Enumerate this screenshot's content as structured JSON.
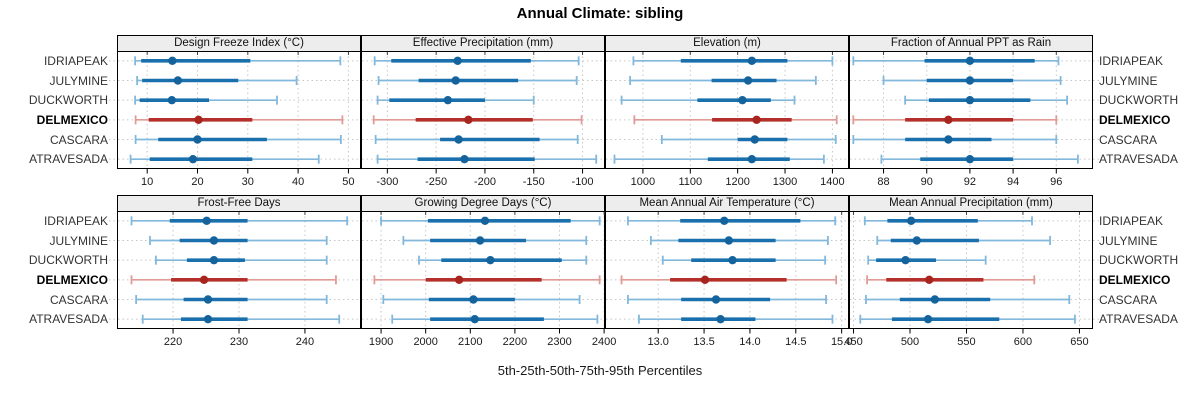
{
  "title": "Annual Climate: sibling",
  "footer_label": "5th-25th-50th-75th-95th Percentiles",
  "sites": [
    "IDRIAPEAK",
    "JULYMINE",
    "DUCKWORTH",
    "DELMEXICO",
    "CASCARA",
    "ATRAVESADA"
  ],
  "highlight_site": "DELMEXICO",
  "legend_note": "percentile whisker plot: thin line 5th-95th, thick line 25th-75th, dot 50th",
  "colors": {
    "blue": "#1a6fad",
    "blue_light": "#82b8dc",
    "blue_dot": "#15639c",
    "red": "#b5302a",
    "red_light": "#e29a94",
    "red_dot": "#a8241f",
    "grid": "#c6c6c6",
    "strip_bg": "#ededed",
    "border": "#000000",
    "text": "#1a1a1a"
  },
  "chart_data": [
    {
      "type": "percentile-dotplot",
      "title": "Design Freeze Index (°C)",
      "xlim": [
        4,
        52.5
      ],
      "ticks": [
        10,
        20,
        30,
        40,
        50
      ],
      "tick_labels": [
        "10",
        "20",
        "30",
        "40",
        "50"
      ],
      "rows": [
        {
          "site": "IDRIAPEAK",
          "p": [
            7.6,
            8.8,
            15.0,
            30.5,
            48.4
          ]
        },
        {
          "site": "JULYMINE",
          "p": [
            8.0,
            9.0,
            16.1,
            28.1,
            39.7
          ]
        },
        {
          "site": "DUCKWORTH",
          "p": [
            7.6,
            8.5,
            14.9,
            22.3,
            35.8
          ]
        },
        {
          "site": "DELMEXICO",
          "p": [
            7.7,
            10.3,
            20.2,
            30.9,
            48.8
          ]
        },
        {
          "site": "CASCARA",
          "p": [
            7.7,
            12.2,
            20.0,
            33.8,
            48.5
          ]
        },
        {
          "site": "ATRAVESADA",
          "p": [
            6.7,
            10.5,
            19.1,
            30.9,
            44.1
          ]
        }
      ]
    },
    {
      "type": "percentile-dotplot",
      "title": "Effective Precipitation (mm)",
      "xlim": [
        -327,
        -77
      ],
      "ticks": [
        -300,
        -250,
        -200,
        -150,
        -100
      ],
      "tick_labels": [
        "-300",
        "-250",
        "-200",
        "-150",
        "-100"
      ],
      "rows": [
        {
          "site": "IDRIAPEAK",
          "p": [
            -313,
            -296,
            -228,
            -153,
            -104
          ]
        },
        {
          "site": "JULYMINE",
          "p": [
            -309,
            -268,
            -230,
            -166,
            -106
          ]
        },
        {
          "site": "DUCKWORTH",
          "p": [
            -310,
            -298,
            -238,
            -200,
            -150
          ]
        },
        {
          "site": "DELMEXICO",
          "p": [
            -314,
            -271,
            -217,
            -151,
            -101
          ]
        },
        {
          "site": "CASCARA",
          "p": [
            -312,
            -246,
            -227,
            -144,
            -105
          ]
        },
        {
          "site": "ATRAVESADA",
          "p": [
            -310,
            -269,
            -221,
            -149,
            -86
          ]
        }
      ]
    },
    {
      "type": "percentile-dotplot",
      "title": "Elevation (m)",
      "xlim": [
        920,
        1435
      ],
      "ticks": [
        1000,
        1100,
        1200,
        1300,
        1400
      ],
      "tick_labels": [
        "1000",
        "1100",
        "1200",
        "1300",
        "1400"
      ],
      "rows": [
        {
          "site": "IDRIAPEAK",
          "p": [
            980,
            1080,
            1230,
            1305,
            1400
          ]
        },
        {
          "site": "JULYMINE",
          "p": [
            973,
            1145,
            1222,
            1282,
            1365
          ]
        },
        {
          "site": "DUCKWORTH",
          "p": [
            955,
            1115,
            1210,
            1270,
            1320
          ]
        },
        {
          "site": "DELMEXICO",
          "p": [
            982,
            1146,
            1240,
            1314,
            1409
          ]
        },
        {
          "site": "CASCARA",
          "p": [
            1040,
            1200,
            1236,
            1305,
            1407
          ]
        },
        {
          "site": "ATRAVESADA",
          "p": [
            940,
            1137,
            1230,
            1310,
            1382
          ]
        }
      ]
    },
    {
      "type": "percentile-dotplot",
      "title": "Fraction of Annual PPT as Rain",
      "xlim": [
        86.4,
        97.7
      ],
      "ticks": [
        88,
        90,
        92,
        94,
        96
      ],
      "tick_labels": [
        "88",
        "90",
        "92",
        "94",
        "96"
      ],
      "rows": [
        {
          "site": "IDRIAPEAK",
          "p": [
            86.6,
            89.9,
            92.0,
            95.0,
            96.1
          ]
        },
        {
          "site": "JULYMINE",
          "p": [
            88.0,
            90.0,
            92.0,
            94.0,
            96.2
          ]
        },
        {
          "site": "DUCKWORTH",
          "p": [
            89.0,
            90.1,
            92.0,
            94.8,
            96.5
          ]
        },
        {
          "site": "DELMEXICO",
          "p": [
            86.6,
            89.0,
            91.0,
            94.0,
            96.0
          ]
        },
        {
          "site": "CASCARA",
          "p": [
            86.6,
            89.0,
            91.0,
            93.0,
            96.0
          ]
        },
        {
          "site": "ATRAVESADA",
          "p": [
            87.9,
            89.7,
            92.0,
            94.0,
            97.0
          ]
        }
      ]
    },
    {
      "type": "percentile-dotplot",
      "title": "Frost-Free Days",
      "xlim": [
        211.5,
        248.5
      ],
      "ticks": [
        220,
        230,
        240
      ],
      "tick_labels": [
        "220",
        "230",
        "240"
      ],
      "rows": [
        {
          "site": "IDRIAPEAK",
          "p": [
            213.7,
            219.5,
            225.1,
            231.3,
            246.4
          ]
        },
        {
          "site": "JULYMINE",
          "p": [
            216.5,
            221.0,
            226.2,
            231.3,
            243.3
          ]
        },
        {
          "site": "DUCKWORTH",
          "p": [
            217.4,
            222.1,
            226.2,
            230.9,
            243.3
          ]
        },
        {
          "site": "DELMEXICO",
          "p": [
            213.7,
            219.7,
            224.7,
            231.3,
            244.7
          ]
        },
        {
          "site": "CASCARA",
          "p": [
            214.4,
            221.6,
            225.3,
            231.3,
            243.3
          ]
        },
        {
          "site": "ATRAVESADA",
          "p": [
            215.4,
            221.2,
            225.3,
            231.3,
            245.2
          ]
        }
      ]
    },
    {
      "type": "percentile-dotplot",
      "title": "Growing Degree Days (°C)",
      "xlim": [
        1855,
        2402
      ],
      "ticks": [
        1900,
        2000,
        2100,
        2200,
        2300,
        2400
      ],
      "tick_labels": [
        "1900",
        "2000",
        "2100",
        "2200",
        "2300",
        "2400"
      ],
      "rows": [
        {
          "site": "IDRIAPEAK",
          "p": [
            1900,
            2005,
            2133,
            2325,
            2390
          ]
        },
        {
          "site": "JULYMINE",
          "p": [
            1950,
            2010,
            2122,
            2225,
            2360
          ]
        },
        {
          "site": "DUCKWORTH",
          "p": [
            1985,
            2035,
            2145,
            2305,
            2360
          ]
        },
        {
          "site": "DELMEXICO",
          "p": [
            1885,
            2000,
            2075,
            2260,
            2390
          ]
        },
        {
          "site": "CASCARA",
          "p": [
            1905,
            2007,
            2107,
            2200,
            2345
          ]
        },
        {
          "site": "ATRAVESADA",
          "p": [
            1925,
            2010,
            2110,
            2265,
            2385
          ]
        }
      ]
    },
    {
      "type": "percentile-dotplot",
      "title": "Mean Annual Air Temperature (°C)",
      "xlim": [
        12.42,
        15.08
      ],
      "ticks": [
        13.0,
        13.5,
        14.0,
        14.5,
        15.0
      ],
      "tick_labels": [
        "13.0",
        "13.5",
        "14.0",
        "14.5",
        "15.0"
      ],
      "rows": [
        {
          "site": "IDRIAPEAK",
          "p": [
            12.67,
            13.24,
            13.72,
            14.55,
            14.93
          ]
        },
        {
          "site": "JULYMINE",
          "p": [
            12.92,
            13.22,
            13.77,
            14.28,
            14.85
          ]
        },
        {
          "site": "DUCKWORTH",
          "p": [
            13.05,
            13.36,
            13.81,
            14.28,
            14.82
          ]
        },
        {
          "site": "DELMEXICO",
          "p": [
            12.6,
            13.13,
            13.51,
            14.4,
            14.94
          ]
        },
        {
          "site": "CASCARA",
          "p": [
            12.67,
            13.25,
            13.63,
            14.22,
            14.83
          ]
        },
        {
          "site": "ATRAVESADA",
          "p": [
            12.79,
            13.25,
            13.68,
            14.06,
            14.9
          ]
        }
      ]
    },
    {
      "type": "percentile-dotplot",
      "title": "Mean Annual Precipitation (mm)",
      "xlim": [
        446,
        662
      ],
      "ticks": [
        450,
        500,
        550,
        600,
        650
      ],
      "tick_labels": [
        "450",
        "500",
        "550",
        "600",
        "650"
      ],
      "rows": [
        {
          "site": "IDRIAPEAK",
          "p": [
            460,
            480,
            501,
            560,
            608
          ]
        },
        {
          "site": "JULYMINE",
          "p": [
            471,
            483,
            506,
            561,
            624
          ]
        },
        {
          "site": "DUCKWORTH",
          "p": [
            463,
            470,
            496,
            523,
            567
          ]
        },
        {
          "site": "DELMEXICO",
          "p": [
            462,
            479,
            517,
            565,
            610
          ]
        },
        {
          "site": "CASCARA",
          "p": [
            461,
            491,
            522,
            571,
            641
          ]
        },
        {
          "site": "ATRAVESADA",
          "p": [
            456,
            484,
            516,
            579,
            646
          ]
        }
      ]
    }
  ]
}
